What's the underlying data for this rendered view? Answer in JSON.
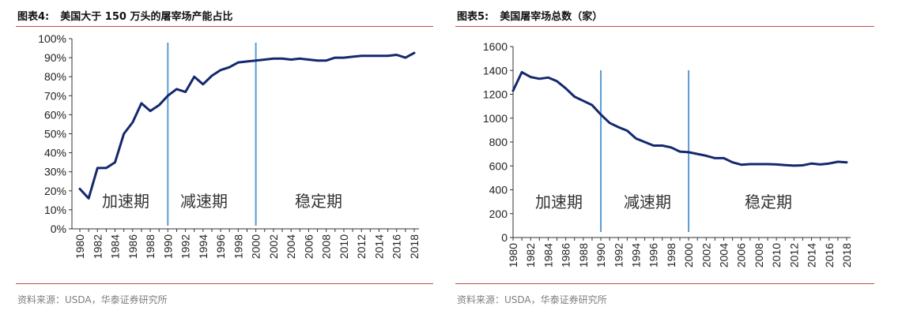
{
  "panels": [
    {
      "figure_no": "图表4:",
      "title": "美国大于 150 万头的屠宰场产能占比",
      "source": "资料来源：USDA，华泰证券研究所"
    },
    {
      "figure_no": "图表5:",
      "title": "美国屠宰场总数（家）",
      "source": "资料来源：USDA，华泰证券研究所"
    }
  ],
  "colors": {
    "line": "#14286e",
    "divider": "#5b9bd5",
    "rule": "#c0504d"
  },
  "chart_data": [
    {
      "type": "line",
      "title": "美国大于 150 万头的屠宰场产能占比",
      "x": [
        1980,
        1981,
        1982,
        1983,
        1984,
        1985,
        1986,
        1987,
        1988,
        1989,
        1990,
        1991,
        1992,
        1993,
        1994,
        1995,
        1996,
        1997,
        1998,
        1999,
        2000,
        2001,
        2002,
        2003,
        2004,
        2005,
        2006,
        2007,
        2008,
        2009,
        2010,
        2011,
        2012,
        2013,
        2014,
        2015,
        2016,
        2017,
        2018
      ],
      "values": [
        21,
        16,
        32,
        32,
        35,
        50,
        56,
        66,
        62,
        65,
        70,
        73.5,
        72,
        80,
        76,
        80.5,
        83.5,
        85,
        87.5,
        88,
        88.5,
        89,
        89.5,
        89.5,
        89,
        89.5,
        89,
        88.5,
        88.5,
        90,
        90,
        90.5,
        91,
        91,
        91,
        91,
        91.5,
        90,
        92.5
      ],
      "ylim": [
        0,
        100
      ],
      "yticks": [
        "0%",
        "10%",
        "20%",
        "30%",
        "40%",
        "50%",
        "60%",
        "70%",
        "80%",
        "90%",
        "100%"
      ],
      "xticks": [
        "1980",
        "1982",
        "1984",
        "1986",
        "1988",
        "1990",
        "1992",
        "1994",
        "1996",
        "1998",
        "2000",
        "2002",
        "2004",
        "2006",
        "2008",
        "2010",
        "2012",
        "2014",
        "2016",
        "2018"
      ],
      "dividers": [
        1990,
        2000
      ],
      "phases": [
        "加速期",
        "减速期",
        "稳定期"
      ],
      "grid": false,
      "legend": "none"
    },
    {
      "type": "line",
      "title": "美国屠宰场总数（家）",
      "x": [
        1980,
        1981,
        1982,
        1983,
        1984,
        1985,
        1986,
        1987,
        1988,
        1989,
        1990,
        1991,
        1992,
        1993,
        1994,
        1995,
        1996,
        1997,
        1998,
        1999,
        2000,
        2001,
        2002,
        2003,
        2004,
        2005,
        2006,
        2007,
        2008,
        2009,
        2010,
        2011,
        2012,
        2013,
        2014,
        2015,
        2016,
        2017,
        2018
      ],
      "values": [
        1230,
        1385,
        1345,
        1330,
        1340,
        1310,
        1250,
        1180,
        1145,
        1110,
        1030,
        960,
        925,
        895,
        830,
        800,
        770,
        770,
        755,
        720,
        715,
        700,
        685,
        665,
        665,
        630,
        610,
        615,
        615,
        615,
        612,
        607,
        602,
        605,
        620,
        612,
        620,
        635,
        630
      ],
      "ylim": [
        0,
        1600
      ],
      "yticks": [
        "0",
        "200",
        "400",
        "600",
        "800",
        "1000",
        "1200",
        "1400",
        "1600"
      ],
      "xticks": [
        "1980",
        "1982",
        "1984",
        "1986",
        "1988",
        "1990",
        "1992",
        "1994",
        "1996",
        "1998",
        "2000",
        "2002",
        "2004",
        "2006",
        "2008",
        "2010",
        "2012",
        "2014",
        "2016",
        "2018"
      ],
      "dividers": [
        1990,
        2000
      ],
      "phases": [
        "加速期",
        "减速期",
        "稳定期"
      ],
      "grid": false,
      "legend": "none"
    }
  ]
}
